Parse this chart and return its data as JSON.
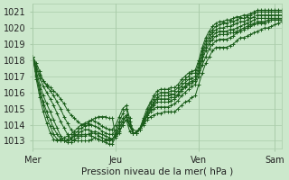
{
  "bg_color": "#cce8cc",
  "plot_bg_color": "#cce8cc",
  "grid_color": "#aaccaa",
  "line_color": "#1a5c1a",
  "xlabel": "Pression niveau de la mer( hPa )",
  "ylim": [
    1012.5,
    1021.5
  ],
  "yticks": [
    1013,
    1014,
    1015,
    1016,
    1017,
    1018,
    1019,
    1020,
    1021
  ],
  "xtick_labels": [
    "Mer",
    "Jeu",
    "Ven",
    "Sam"
  ],
  "xtick_positions": [
    0,
    24,
    48,
    70
  ],
  "total_points": 73,
  "vline_positions": [
    0,
    24,
    48,
    70
  ],
  "series": [
    [
      1018.2,
      1017.8,
      1017.3,
      1016.7,
      1016.5,
      1016.3,
      1016.1,
      1015.9,
      1015.6,
      1015.3,
      1014.9,
      1014.6,
      1014.4,
      1014.2,
      1014.0,
      1014.0,
      1014.1,
      1014.3,
      1014.4,
      1014.5,
      1014.5,
      1014.5,
      1014.4,
      1014.4,
      1013.2,
      1013.5,
      1014.0,
      1014.3,
      1013.6,
      1013.5,
      1013.5,
      1013.7,
      1014.0,
      1014.3,
      1014.5,
      1014.6,
      1014.7,
      1014.7,
      1014.8,
      1014.8,
      1014.8,
      1014.8,
      1015.0,
      1015.2,
      1015.4,
      1015.5,
      1015.7,
      1015.8,
      1016.5,
      1017.2,
      1017.8,
      1018.2,
      1018.6,
      1018.8,
      1018.8,
      1018.8,
      1018.8,
      1018.9,
      1019.0,
      1019.2,
      1019.4,
      1019.4,
      1019.5,
      1019.6,
      1019.7,
      1019.8,
      1019.9,
      1020.0,
      1020.0,
      1020.1,
      1020.2,
      1020.3,
      1020.4
    ],
    [
      1018.2,
      1017.6,
      1017.1,
      1016.7,
      1016.4,
      1016.1,
      1015.8,
      1015.4,
      1015.0,
      1014.5,
      1014.1,
      1013.7,
      1013.4,
      1013.3,
      1013.3,
      1013.3,
      1013.4,
      1013.5,
      1013.6,
      1013.5,
      1013.4,
      1013.3,
      1013.2,
      1013.1,
      1013.3,
      1013.6,
      1014.0,
      1014.3,
      1014.0,
      1013.7,
      1013.6,
      1013.8,
      1014.1,
      1014.5,
      1014.8,
      1015.0,
      1015.1,
      1015.1,
      1015.1,
      1015.1,
      1015.2,
      1015.3,
      1015.5,
      1015.8,
      1016.0,
      1016.2,
      1016.4,
      1016.5,
      1017.0,
      1017.7,
      1018.2,
      1018.7,
      1019.0,
      1019.2,
      1019.3,
      1019.3,
      1019.3,
      1019.4,
      1019.5,
      1019.7,
      1019.8,
      1019.9,
      1020.0,
      1020.1,
      1020.2,
      1020.3,
      1020.3,
      1020.3,
      1020.4,
      1020.5,
      1020.5,
      1020.5,
      1020.5
    ],
    [
      1018.2,
      1017.5,
      1016.9,
      1016.4,
      1016.0,
      1015.6,
      1015.2,
      1014.7,
      1014.2,
      1013.8,
      1013.4,
      1013.1,
      1013.0,
      1013.0,
      1013.0,
      1013.0,
      1013.0,
      1013.1,
      1013.2,
      1013.1,
      1013.0,
      1012.9,
      1012.8,
      1012.8,
      1013.3,
      1013.8,
      1014.2,
      1014.5,
      1013.9,
      1013.5,
      1013.5,
      1013.7,
      1014.1,
      1014.5,
      1014.9,
      1015.2,
      1015.4,
      1015.4,
      1015.4,
      1015.4,
      1015.5,
      1015.6,
      1015.8,
      1016.1,
      1016.3,
      1016.5,
      1016.6,
      1016.7,
      1017.2,
      1018.0,
      1018.6,
      1019.0,
      1019.3,
      1019.5,
      1019.6,
      1019.6,
      1019.6,
      1019.7,
      1019.7,
      1019.8,
      1019.9,
      1020.0,
      1020.1,
      1020.2,
      1020.3,
      1020.4,
      1020.4,
      1020.4,
      1020.5,
      1020.5,
      1020.5,
      1020.5,
      1020.5
    ],
    [
      1018.2,
      1017.3,
      1016.5,
      1015.8,
      1015.3,
      1014.8,
      1014.3,
      1013.8,
      1013.3,
      1013.0,
      1012.9,
      1012.9,
      1013.1,
      1013.2,
      1013.4,
      1013.4,
      1013.4,
      1013.3,
      1013.2,
      1013.1,
      1013.0,
      1013.0,
      1013.0,
      1013.1,
      1013.4,
      1013.8,
      1014.2,
      1014.5,
      1014.0,
      1013.5,
      1013.5,
      1013.7,
      1014.1,
      1014.6,
      1015.0,
      1015.3,
      1015.6,
      1015.6,
      1015.6,
      1015.6,
      1015.7,
      1015.7,
      1015.9,
      1016.2,
      1016.4,
      1016.6,
      1016.7,
      1016.8,
      1017.4,
      1018.2,
      1018.8,
      1019.2,
      1019.5,
      1019.7,
      1019.8,
      1019.8,
      1019.8,
      1019.9,
      1019.9,
      1020.0,
      1020.1,
      1020.2,
      1020.3,
      1020.4,
      1020.5,
      1020.6,
      1020.6,
      1020.6,
      1020.6,
      1020.6,
      1020.6,
      1020.6,
      1020.6
    ],
    [
      1018.2,
      1017.1,
      1016.2,
      1015.4,
      1014.8,
      1014.3,
      1013.8,
      1013.4,
      1013.1,
      1013.0,
      1013.0,
      1013.1,
      1013.3,
      1013.4,
      1013.6,
      1013.7,
      1013.7,
      1013.6,
      1013.5,
      1013.3,
      1013.2,
      1013.1,
      1013.1,
      1013.1,
      1013.5,
      1014.0,
      1014.4,
      1014.6,
      1014.0,
      1013.5,
      1013.5,
      1013.7,
      1014.2,
      1014.7,
      1015.1,
      1015.4,
      1015.7,
      1015.8,
      1015.8,
      1015.8,
      1015.9,
      1015.9,
      1016.1,
      1016.4,
      1016.6,
      1016.8,
      1016.9,
      1017.0,
      1017.6,
      1018.4,
      1019.0,
      1019.4,
      1019.7,
      1019.9,
      1020.0,
      1020.0,
      1020.1,
      1020.1,
      1020.2,
      1020.3,
      1020.4,
      1020.4,
      1020.5,
      1020.6,
      1020.7,
      1020.8,
      1020.8,
      1020.8,
      1020.8,
      1020.8,
      1020.8,
      1020.8,
      1020.8
    ],
    [
      1018.2,
      1017.0,
      1016.0,
      1015.2,
      1014.5,
      1013.9,
      1013.4,
      1013.1,
      1013.0,
      1013.0,
      1013.1,
      1013.2,
      1013.4,
      1013.6,
      1013.8,
      1013.9,
      1014.0,
      1014.0,
      1013.9,
      1013.8,
      1013.6,
      1013.5,
      1013.4,
      1013.4,
      1013.7,
      1014.2,
      1014.7,
      1015.0,
      1014.2,
      1013.5,
      1013.5,
      1013.8,
      1014.3,
      1014.8,
      1015.3,
      1015.6,
      1015.9,
      1016.0,
      1016.0,
      1016.0,
      1016.1,
      1016.1,
      1016.3,
      1016.6,
      1016.8,
      1017.0,
      1017.2,
      1017.2,
      1017.8,
      1018.6,
      1019.2,
      1019.6,
      1019.9,
      1020.1,
      1020.2,
      1020.3,
      1020.3,
      1020.4,
      1020.4,
      1020.5,
      1020.6,
      1020.6,
      1020.7,
      1020.8,
      1020.9,
      1021.0,
      1021.0,
      1021.0,
      1021.0,
      1021.0,
      1021.0,
      1021.0,
      1021.0
    ],
    [
      1018.2,
      1016.8,
      1015.7,
      1014.8,
      1014.1,
      1013.5,
      1013.1,
      1013.0,
      1013.1,
      1013.2,
      1013.3,
      1013.4,
      1013.6,
      1013.8,
      1014.0,
      1014.1,
      1014.2,
      1014.3,
      1014.2,
      1014.1,
      1013.9,
      1013.8,
      1013.7,
      1013.7,
      1014.0,
      1014.5,
      1015.0,
      1015.2,
      1014.4,
      1013.5,
      1013.5,
      1013.8,
      1014.4,
      1015.0,
      1015.4,
      1015.8,
      1016.1,
      1016.2,
      1016.2,
      1016.2,
      1016.3,
      1016.3,
      1016.5,
      1016.8,
      1017.0,
      1017.2,
      1017.3,
      1017.4,
      1018.0,
      1018.8,
      1019.4,
      1019.8,
      1020.1,
      1020.3,
      1020.4,
      1020.4,
      1020.5,
      1020.5,
      1020.6,
      1020.7,
      1020.7,
      1020.8,
      1020.8,
      1020.9,
      1021.0,
      1021.1,
      1021.1,
      1021.1,
      1021.1,
      1021.1,
      1021.1,
      1021.1,
      1021.1
    ]
  ]
}
